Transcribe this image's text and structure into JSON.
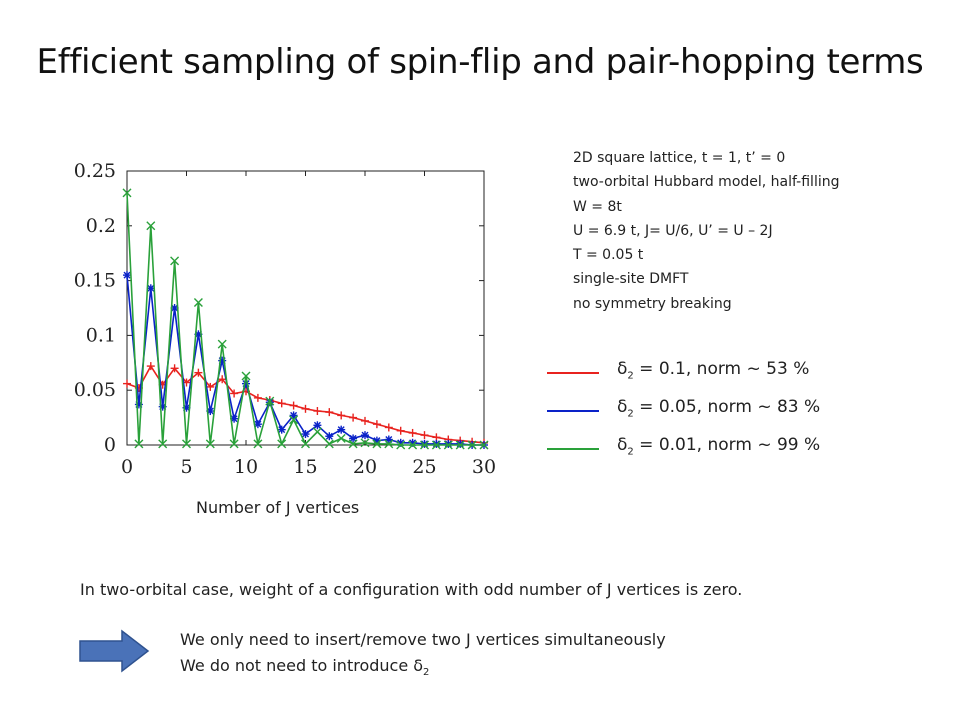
{
  "slide": {
    "title": "Efficient sampling of spin-flip and pair-hopping terms",
    "xlabel": "Number of J vertices",
    "params": [
      "2D square lattice, t = 1, t’ = 0",
      "two-orbital Hubbard model, half-filling",
      "W = 8t",
      "U = 6.9 t, J= U/6, U’ = U – 2J",
      "T = 0.05 t",
      "single-site DMFT",
      "no symmetry breaking"
    ],
    "legend": [
      {
        "symbol": "δ",
        "sub": "2",
        "text": " = 0.1,   norm ~ 53 %",
        "color": "#e8231f"
      },
      {
        "symbol": "δ",
        "sub": "2",
        "text": " = 0.05, norm ~ 83 %",
        "color": "#0a22c8"
      },
      {
        "symbol": "δ",
        "sub": "2",
        "text": " = 0.01, norm ~ 99 %",
        "color": "#2aa13a"
      }
    ],
    "note": "In two-orbital case, weight of a configuration with odd number of J vertices is zero.",
    "bullet1": "We only need to insert/remove two J vertices simultaneously",
    "bullet2_text": "We do not need to introduce δ",
    "bullet2_sub": "2",
    "arrow_color": "#4a72b8"
  },
  "chart_data": {
    "type": "line",
    "xlim": [
      0,
      30
    ],
    "ylim": [
      0,
      0.25
    ],
    "xticks": [
      0,
      5,
      10,
      15,
      20,
      25,
      30
    ],
    "yticks": [
      0,
      0.05,
      0.1,
      0.15,
      0.2,
      0.25
    ],
    "ytick_labels": [
      "0",
      "0.05",
      "0.1",
      "0.15",
      "0.2",
      "0.25"
    ],
    "x": [
      0,
      1,
      2,
      3,
      4,
      5,
      6,
      7,
      8,
      9,
      10,
      11,
      12,
      13,
      14,
      15,
      16,
      17,
      18,
      19,
      20,
      21,
      22,
      23,
      24,
      25,
      26,
      27,
      28,
      29,
      30
    ],
    "series": [
      {
        "marker": "plus",
        "color": "#e8231f",
        "values": [
          0.056,
          0.052,
          0.072,
          0.055,
          0.07,
          0.057,
          0.066,
          0.053,
          0.06,
          0.047,
          0.049,
          0.043,
          0.041,
          0.038,
          0.036,
          0.033,
          0.031,
          0.03,
          0.027,
          0.025,
          0.022,
          0.019,
          0.016,
          0.013,
          0.011,
          0.009,
          0.007,
          0.005,
          0.004,
          0.003,
          0.002
        ]
      },
      {
        "marker": "asterisk",
        "color": "#0a22c8",
        "values": [
          0.155,
          0.037,
          0.143,
          0.035,
          0.125,
          0.034,
          0.101,
          0.031,
          0.077,
          0.024,
          0.056,
          0.019,
          0.039,
          0.014,
          0.027,
          0.01,
          0.018,
          0.008,
          0.014,
          0.006,
          0.009,
          0.004,
          0.005,
          0.002,
          0.002,
          0.001,
          0.001,
          0.001,
          0.001,
          0.0,
          0.0
        ]
      },
      {
        "marker": "x",
        "color": "#2aa13a",
        "values": [
          0.23,
          0.001,
          0.2,
          0.001,
          0.168,
          0.001,
          0.13,
          0.001,
          0.092,
          0.001,
          0.063,
          0.001,
          0.04,
          0.001,
          0.023,
          0.001,
          0.012,
          0.001,
          0.006,
          0.001,
          0.002,
          0.001,
          0.001,
          0.0,
          0.0,
          0.0,
          0.0,
          0.0,
          0.0,
          0.0,
          0.0
        ]
      }
    ]
  }
}
